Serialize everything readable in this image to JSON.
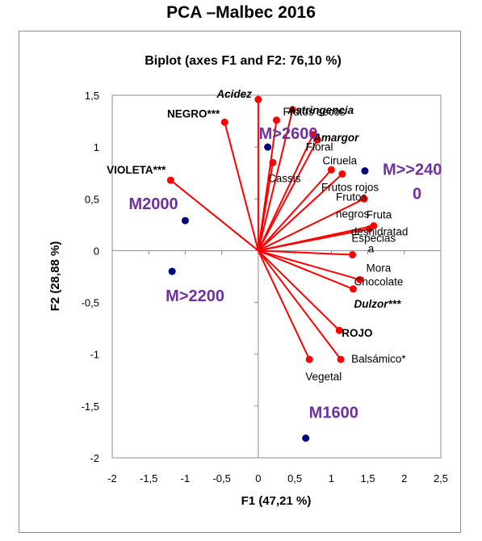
{
  "page_title": "PCA –Malbec 2016",
  "chart_data": {
    "type": "scatter",
    "subtitle": "Biplot (axes F1 and F2: 76,10 %)",
    "xlabel": "F1 (47,21 %)",
    "ylabel": "F2 (28,88 %)",
    "xlim": [
      -2,
      2.5
    ],
    "ylim": [
      -2,
      1.5
    ],
    "xticks": [
      "-2",
      "-1,5",
      "-1",
      "-0,5",
      "0",
      "0,5",
      "1",
      "1,5",
      "2",
      "2,5"
    ],
    "yticks": [
      "1,5",
      "1",
      "0,5",
      "0",
      "-0,5",
      "-1",
      "-1,5",
      "-2"
    ],
    "grid": false,
    "colors": {
      "variables": "#ff0000",
      "observations": "#00007f",
      "observation_labels": "#7030a0"
    },
    "variables": [
      {
        "label": "Acidez",
        "x": 0.0,
        "y": 1.46,
        "style": "bold-italic"
      },
      {
        "label": "Frutos secos",
        "x": 0.25,
        "y": 1.26,
        "style": "normal"
      },
      {
        "label": "Astringencia",
        "x": 0.47,
        "y": 1.36,
        "style": "bold-italic"
      },
      {
        "label": "Amargor",
        "x": 0.81,
        "y": 1.07,
        "style": "bold-italic"
      },
      {
        "label": "NEGRO***",
        "x": -0.46,
        "y": 1.24,
        "style": "bold"
      },
      {
        "label": "VIOLETA***",
        "x": -1.2,
        "y": 0.68,
        "style": "bold"
      },
      {
        "label": "Cassis",
        "x": 0.2,
        "y": 0.85,
        "style": "normal"
      },
      {
        "label": "Floral",
        "x": 0.75,
        "y": 1.12,
        "style": "normal"
      },
      {
        "label": "Ciruela",
        "x": 1.0,
        "y": 0.78,
        "style": "normal"
      },
      {
        "label": "Frutos rojos",
        "x": 1.15,
        "y": 0.74,
        "style": "normal"
      },
      {
        "label": "Frutos negros",
        "x": 1.45,
        "y": 0.5,
        "style": "normal"
      },
      {
        "label": "Fruta deshidratada",
        "x": 1.58,
        "y": 0.24,
        "style": "normal"
      },
      {
        "label": "Especias",
        "x": 1.52,
        "y": 0.21,
        "style": "normal"
      },
      {
        "label": "Mora",
        "x": 1.29,
        "y": -0.04,
        "style": "normal"
      },
      {
        "label": "Chocolate",
        "x": 1.39,
        "y": -0.28,
        "style": "normal"
      },
      {
        "label": "Dulzor***",
        "x": 1.3,
        "y": -0.37,
        "style": "bold-italic"
      },
      {
        "label": "ROJO",
        "x": 1.11,
        "y": -0.77,
        "style": "bold"
      },
      {
        "label": "Balsámico*",
        "x": 1.13,
        "y": -1.05,
        "style": "normal"
      },
      {
        "label": "Vegetal",
        "x": 0.7,
        "y": -1.05,
        "style": "normal"
      }
    ],
    "observations": [
      {
        "label": "M>2600",
        "x": 0.13,
        "y": 1.0
      },
      {
        "label": "M>>2400",
        "x": 1.46,
        "y": 0.77
      },
      {
        "label": "M2000",
        "x": -1.0,
        "y": 0.29
      },
      {
        "label": "M>2200",
        "x": -1.18,
        "y": -0.2
      },
      {
        "label": "M1600",
        "x": 0.65,
        "y": -1.81
      }
    ]
  }
}
